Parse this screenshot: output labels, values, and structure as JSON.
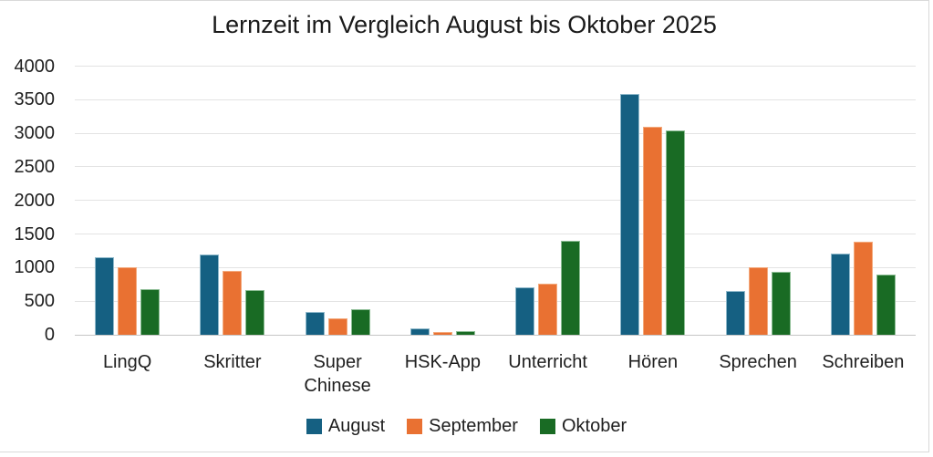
{
  "chart_data": {
    "type": "bar",
    "title": "Lernzeit im Vergleich August bis Oktober 2025",
    "categories": [
      "LingQ",
      "Skritter",
      "Super Chinese",
      "HSK-App",
      "Unterricht",
      "Hören",
      "Sprechen",
      "Schreiben"
    ],
    "series": [
      {
        "name": "August",
        "color": "#156082",
        "border_color": "#8fb9cb",
        "values": [
          1150,
          1200,
          340,
          90,
          700,
          3580,
          650,
          1210
        ]
      },
      {
        "name": "September",
        "color": "#E97132",
        "border_color": "#f3a97c",
        "values": [
          1000,
          950,
          250,
          40,
          760,
          3100,
          1000,
          1380
        ]
      },
      {
        "name": "Oktober",
        "color": "#196B24",
        "border_color": "#8cbd94",
        "values": [
          680,
          670,
          380,
          55,
          1400,
          3040,
          940,
          900
        ]
      }
    ],
    "y_axis": {
      "ticks": [
        0,
        500,
        1000,
        1500,
        2000,
        2500,
        3000,
        3500,
        4000
      ],
      "min": 0,
      "max": 4000
    },
    "xlabel": "",
    "ylabel": "",
    "grid": true,
    "legend_position": "bottom",
    "colors": {
      "gridline": "#e3e3e3",
      "axis_line": "#c6c6c6",
      "frame": "#d9d9d9",
      "text": "#1f1f1f",
      "background": "#ffffff"
    }
  }
}
